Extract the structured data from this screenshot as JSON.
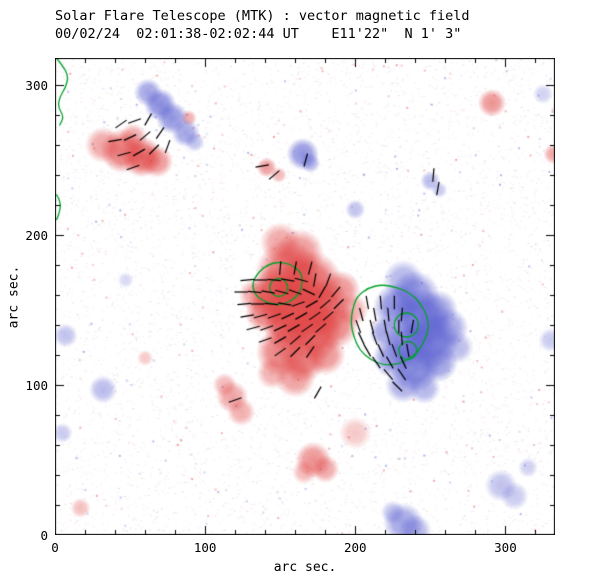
{
  "colors": {
    "background": "#ffffff",
    "frame": "#000000",
    "positive": "#e14646",
    "negative": "#5f64d2",
    "contour": "#00a228",
    "vector": "#000000",
    "text": "#000000"
  },
  "chart_data": {
    "type": "heatmap",
    "description": "Solar vector magnetogram: red = positive line-of-sight polarity, blue = negative polarity, green contour lines, short black segments = transverse field vectors. Units: arc seconds.",
    "title": "Solar Flare Telescope (MTK) : vector magnetic field",
    "subtitle": "00/02/24  02:01:38-02:02:44 UT    E11'22\"  N 1' 3\"",
    "xlabel": "arc sec.",
    "ylabel": "arc sec.",
    "xlim": [
      0,
      333
    ],
    "ylim": [
      0,
      318
    ],
    "xticks": [
      0,
      100,
      200,
      300
    ],
    "yticks": [
      0,
      100,
      200,
      300
    ],
    "minor_tick_step": 20,
    "legend": "red = positive magnetic polarity, blue = negative magnetic polarity",
    "noise": {
      "count": 7000,
      "strong": 260,
      "seed": 97
    },
    "positive_regions": [
      [
        32,
        260,
        9,
        0.5
      ],
      [
        45,
        256,
        11,
        0.75
      ],
      [
        58,
        252,
        10,
        0.85
      ],
      [
        68,
        249,
        8,
        0.6
      ],
      [
        52,
        265,
        7,
        0.5
      ],
      [
        89,
        278,
        4,
        0.45
      ],
      [
        141,
        245,
        5,
        0.55
      ],
      [
        149,
        240,
        4,
        0.4
      ],
      [
        150,
        195,
        10,
        0.5
      ],
      [
        163,
        188,
        12,
        0.6
      ],
      [
        155,
        175,
        16,
        0.8
      ],
      [
        170,
        168,
        16,
        0.85
      ],
      [
        148,
        160,
        14,
        0.9
      ],
      [
        162,
        150,
        18,
        0.9
      ],
      [
        178,
        152,
        14,
        0.8
      ],
      [
        186,
        140,
        12,
        0.7
      ],
      [
        172,
        135,
        14,
        0.85
      ],
      [
        155,
        138,
        12,
        0.8
      ],
      [
        140,
        148,
        10,
        0.7
      ],
      [
        133,
        160,
        8,
        0.5
      ],
      [
        150,
        122,
        12,
        0.7
      ],
      [
        165,
        118,
        12,
        0.75
      ],
      [
        180,
        120,
        10,
        0.6
      ],
      [
        160,
        105,
        10,
        0.55
      ],
      [
        145,
        108,
        8,
        0.45
      ],
      [
        190,
        163,
        10,
        0.6
      ],
      [
        198,
        150,
        8,
        0.45
      ],
      [
        118,
        92,
        8,
        0.5
      ],
      [
        124,
        82,
        7,
        0.45
      ],
      [
        113,
        100,
        6,
        0.4
      ],
      [
        172,
        50,
        9,
        0.6
      ],
      [
        180,
        44,
        7,
        0.5
      ],
      [
        166,
        42,
        6,
        0.4
      ],
      [
        200,
        68,
        8,
        0.3
      ],
      [
        291,
        288,
        7,
        0.6
      ],
      [
        332,
        254,
        5,
        0.5
      ],
      [
        17,
        18,
        5,
        0.35
      ],
      [
        60,
        118,
        4,
        0.3
      ]
    ],
    "negative_regions": [
      [
        62,
        295,
        7,
        0.6
      ],
      [
        70,
        287,
        8,
        0.75
      ],
      [
        78,
        278,
        8,
        0.7
      ],
      [
        87,
        268,
        7,
        0.6
      ],
      [
        93,
        262,
        5,
        0.4
      ],
      [
        165,
        254,
        8,
        0.7
      ],
      [
        170,
        248,
        5,
        0.5
      ],
      [
        250,
        236,
        5,
        0.45
      ],
      [
        256,
        230,
        4,
        0.35
      ],
      [
        232,
        170,
        10,
        0.5
      ],
      [
        240,
        160,
        12,
        0.7
      ],
      [
        228,
        152,
        12,
        0.75
      ],
      [
        244,
        145,
        14,
        0.85
      ],
      [
        255,
        150,
        10,
        0.6
      ],
      [
        262,
        138,
        10,
        0.6
      ],
      [
        250,
        130,
        14,
        0.9
      ],
      [
        236,
        128,
        12,
        0.85
      ],
      [
        225,
        118,
        10,
        0.7
      ],
      [
        240,
        112,
        12,
        0.8
      ],
      [
        255,
        115,
        10,
        0.65
      ],
      [
        232,
        100,
        9,
        0.55
      ],
      [
        246,
        98,
        8,
        0.5
      ],
      [
        268,
        125,
        8,
        0.45
      ],
      [
        220,
        135,
        8,
        0.6
      ],
      [
        232,
        8,
        10,
        0.6
      ],
      [
        240,
        3,
        8,
        0.5
      ],
      [
        225,
        15,
        6,
        0.4
      ],
      [
        297,
        33,
        8,
        0.4
      ],
      [
        306,
        26,
        7,
        0.35
      ],
      [
        315,
        45,
        5,
        0.3
      ],
      [
        330,
        130,
        6,
        0.35
      ],
      [
        7,
        133,
        6,
        0.4
      ],
      [
        32,
        97,
        7,
        0.45
      ],
      [
        5,
        68,
        5,
        0.35
      ],
      [
        47,
        170,
        4,
        0.25
      ],
      [
        200,
        217,
        5,
        0.4
      ],
      [
        325,
        294,
        5,
        0.3
      ]
    ],
    "contours": {
      "paths": [
        {
          "closed": true,
          "points": [
            [
              131,
              167
            ],
            [
              135,
              175
            ],
            [
              143,
              181
            ],
            [
              152,
              182
            ],
            [
              160,
              179
            ],
            [
              165,
              173
            ],
            [
              164,
              163
            ],
            [
              159,
              157
            ],
            [
              150,
              153
            ],
            [
              141,
              155
            ],
            [
              134,
              159
            ]
          ]
        },
        {
          "closed": true,
          "points": [
            [
              198,
              150
            ],
            [
              201,
              159
            ],
            [
              209,
              165
            ],
            [
              218,
              167
            ],
            [
              228,
              165
            ],
            [
              237,
              161
            ],
            [
              243,
              155
            ],
            [
              248,
              146
            ],
            [
              249,
              137
            ],
            [
              245,
              127
            ],
            [
              239,
              119
            ],
            [
              229,
              114
            ],
            [
              219,
              113
            ],
            [
              210,
              117
            ],
            [
              203,
              123
            ],
            [
              199,
              132
            ],
            [
              197,
              141
            ]
          ]
        },
        {
          "closed": false,
          "points": [
            [
              1,
              318
            ],
            [
              5,
              313
            ],
            [
              9,
              306
            ],
            [
              7,
              298
            ],
            [
              3,
              292
            ],
            [
              2,
              285
            ],
            [
              6,
              279
            ],
            [
              3,
              273
            ]
          ]
        },
        {
          "closed": false,
          "points": [
            [
              1,
              227
            ],
            [
              4,
              222
            ],
            [
              3,
              215
            ],
            [
              1,
              210
            ]
          ]
        }
      ],
      "circles": [
        [
          149,
          165,
          6
        ],
        [
          234,
          140,
          8
        ],
        [
          235,
          123,
          6
        ]
      ]
    },
    "vectors": [
      [
        44,
        274,
        35
      ],
      [
        53,
        276,
        20
      ],
      [
        62,
        277,
        60
      ],
      [
        40,
        263,
        10
      ],
      [
        50,
        265,
        25
      ],
      [
        60,
        266,
        40
      ],
      [
        70,
        268,
        55
      ],
      [
        46,
        254,
        15
      ],
      [
        56,
        255,
        30
      ],
      [
        66,
        257,
        45
      ],
      [
        75,
        259,
        70
      ],
      [
        52,
        245,
        20
      ],
      [
        138,
        246,
        10
      ],
      [
        146,
        240,
        40
      ],
      [
        167,
        250,
        75
      ],
      [
        150,
        178,
        85
      ],
      [
        160,
        178,
        80
      ],
      [
        170,
        178,
        75
      ],
      [
        128,
        170,
        5
      ],
      [
        137,
        170,
        0
      ],
      [
        146,
        170,
        175
      ],
      [
        155,
        170,
        170
      ],
      [
        164,
        170,
        165
      ],
      [
        173,
        170,
        80
      ],
      [
        182,
        170,
        70
      ],
      [
        124,
        162,
        0
      ],
      [
        133,
        162,
        175
      ],
      [
        142,
        162,
        170
      ],
      [
        151,
        162,
        165
      ],
      [
        160,
        162,
        160
      ],
      [
        169,
        162,
        155
      ],
      [
        178,
        162,
        60
      ],
      [
        187,
        162,
        50
      ],
      [
        126,
        154,
        5
      ],
      [
        135,
        154,
        0
      ],
      [
        144,
        154,
        175
      ],
      [
        153,
        154,
        170
      ],
      [
        162,
        154,
        20
      ],
      [
        171,
        154,
        30
      ],
      [
        180,
        154,
        40
      ],
      [
        189,
        154,
        45
      ],
      [
        128,
        146,
        10
      ],
      [
        137,
        146,
        15
      ],
      [
        146,
        146,
        20
      ],
      [
        155,
        146,
        25
      ],
      [
        164,
        146,
        30
      ],
      [
        173,
        146,
        35
      ],
      [
        182,
        146,
        40
      ],
      [
        132,
        138,
        15
      ],
      [
        141,
        138,
        20
      ],
      [
        150,
        138,
        25
      ],
      [
        159,
        138,
        30
      ],
      [
        168,
        138,
        35
      ],
      [
        177,
        138,
        40
      ],
      [
        140,
        130,
        20
      ],
      [
        150,
        130,
        30
      ],
      [
        160,
        130,
        40
      ],
      [
        170,
        130,
        45
      ],
      [
        150,
        122,
        35
      ],
      [
        160,
        122,
        45
      ],
      [
        170,
        122,
        55
      ],
      [
        208,
        155,
        100
      ],
      [
        217,
        155,
        95
      ],
      [
        226,
        155,
        90
      ],
      [
        204,
        147,
        105
      ],
      [
        213,
        147,
        100
      ],
      [
        222,
        147,
        95
      ],
      [
        231,
        147,
        85
      ],
      [
        202,
        139,
        110
      ],
      [
        211,
        139,
        105
      ],
      [
        220,
        139,
        100
      ],
      [
        229,
        139,
        90
      ],
      [
        238,
        139,
        80
      ],
      [
        204,
        131,
        115
      ],
      [
        213,
        131,
        110
      ],
      [
        222,
        131,
        105
      ],
      [
        231,
        131,
        95
      ],
      [
        208,
        123,
        120
      ],
      [
        217,
        123,
        115
      ],
      [
        226,
        123,
        110
      ],
      [
        235,
        123,
        100
      ],
      [
        214,
        115,
        125
      ],
      [
        223,
        115,
        120
      ],
      [
        232,
        115,
        115
      ],
      [
        222,
        107,
        130
      ],
      [
        231,
        107,
        125
      ],
      [
        228,
        99,
        135
      ],
      [
        252,
        240,
        85
      ],
      [
        255,
        231,
        80
      ],
      [
        120,
        90,
        20
      ],
      [
        175,
        95,
        60
      ]
    ]
  }
}
